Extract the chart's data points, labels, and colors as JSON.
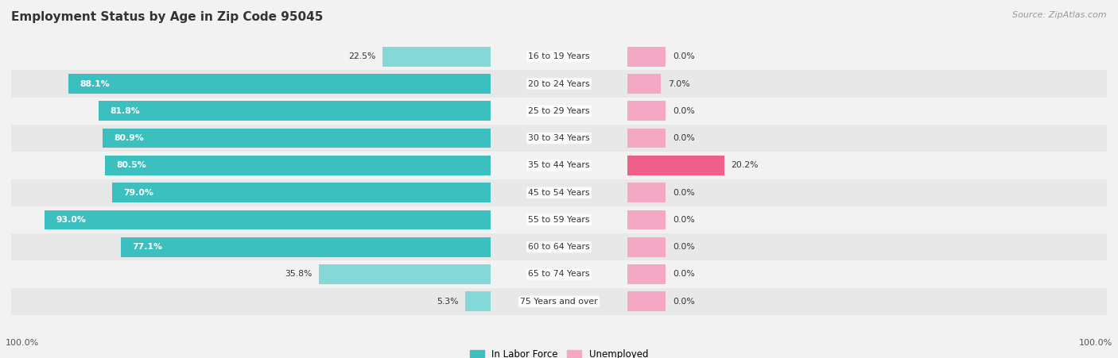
{
  "title": "Employment Status by Age in Zip Code 95045",
  "source": "Source: ZipAtlas.com",
  "categories": [
    "16 to 19 Years",
    "20 to 24 Years",
    "25 to 29 Years",
    "30 to 34 Years",
    "35 to 44 Years",
    "45 to 54 Years",
    "55 to 59 Years",
    "60 to 64 Years",
    "65 to 74 Years",
    "75 Years and over"
  ],
  "labor_force": [
    22.5,
    88.1,
    81.8,
    80.9,
    80.5,
    79.0,
    93.0,
    77.1,
    35.8,
    5.3
  ],
  "unemployed": [
    0.0,
    7.0,
    0.0,
    0.0,
    20.2,
    0.0,
    0.0,
    0.0,
    0.0,
    0.0
  ],
  "labor_force_color": "#3bbfbf",
  "labor_force_color_light": "#85d8d8",
  "unemployed_color_strong": "#ee5f8a",
  "unemployed_color_light": "#f4a8c4",
  "row_color_even": "#f2f2f2",
  "row_color_odd": "#e8e8e8",
  "fig_background": "#f2f2f2",
  "title_color": "#333333",
  "source_color": "#999999",
  "legend_items": [
    "In Labor Force",
    "Unemployed"
  ],
  "axis_label_left": "100.0%",
  "axis_label_right": "100.0%"
}
